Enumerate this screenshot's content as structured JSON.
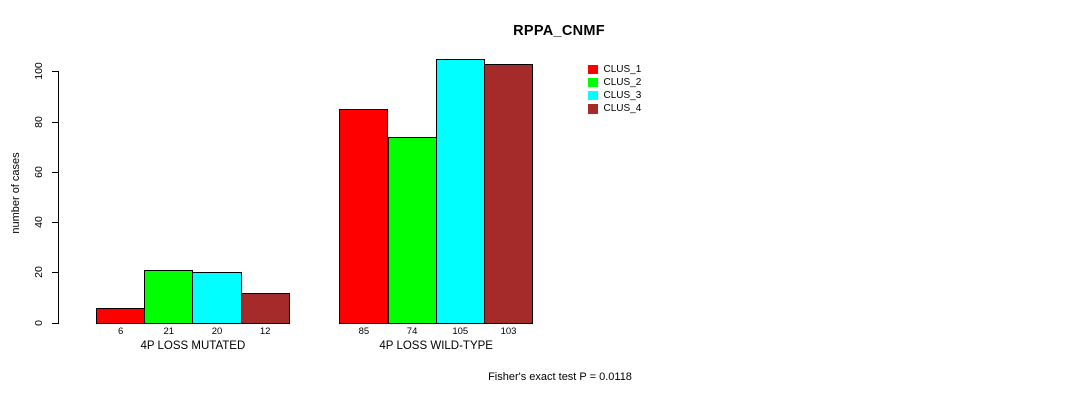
{
  "chart_data": {
    "type": "bar",
    "title": "RPPA_CNMF",
    "ylabel": "number of cases",
    "xlabel": "",
    "yticks": [
      0,
      20,
      40,
      60,
      80,
      100
    ],
    "ylim": [
      0,
      105
    ],
    "grid": false,
    "legend_position": "top-right",
    "background": "#ffffff",
    "axis_color": "#000000",
    "categories": [
      "4P LOSS MUTATED",
      "4P LOSS WILD-TYPE"
    ],
    "series": [
      {
        "name": "CLUS_1",
        "color": "#ff0000",
        "values": [
          6,
          85
        ]
      },
      {
        "name": "CLUS_2",
        "color": "#00ff00",
        "values": [
          21,
          74
        ]
      },
      {
        "name": "CLUS_3",
        "color": "#00ffff",
        "values": [
          20,
          105
        ]
      },
      {
        "name": "CLUS_4",
        "color": "#a52a2a",
        "values": [
          12,
          103
        ]
      }
    ],
    "bar_value_labels": [
      [
        "6",
        "21",
        "20",
        "12"
      ],
      [
        "85",
        "74",
        "105",
        "103"
      ]
    ],
    "annotation": "Fisher's exact test P = 0.0118"
  }
}
